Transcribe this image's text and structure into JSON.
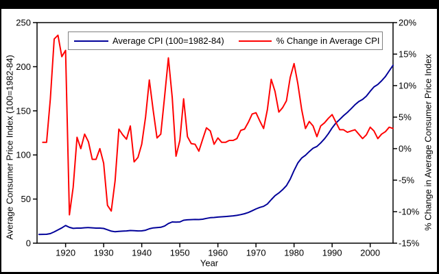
{
  "window": {
    "background": "#000000",
    "canvas_background": "#ffffff",
    "top_band_height": 13
  },
  "frame_color": "#000000",
  "legend_border_color": "#7f7f7f",
  "chart_data": {
    "type": "line",
    "title": "",
    "xlabel": "Year",
    "ylabel_left": "Average Consumer Price Index (100=1982-84)",
    "ylabel_right": "% Change in Average Consumer Price Index",
    "grid": false,
    "legend_position": "top-inside",
    "x_axis": {
      "min": 1912.5,
      "max": 2006,
      "ticks": [
        1920,
        1930,
        1940,
        1950,
        1960,
        1970,
        1980,
        1990,
        2000
      ],
      "tick_labels": [
        "1920",
        "1930",
        "1940",
        "1950",
        "1960",
        "1970",
        "1980",
        "1990",
        "2000"
      ]
    },
    "y_axis_left": {
      "min": 0,
      "max": 250,
      "ticks": [
        0,
        50,
        100,
        150,
        200,
        250
      ],
      "tick_labels": [
        "0",
        "50",
        "100",
        "150",
        "200",
        "250"
      ]
    },
    "y_axis_right": {
      "min": -15,
      "max": 20,
      "ticks": [
        20,
        15,
        10,
        5,
        0,
        -5,
        -10,
        -15
      ],
      "tick_labels": [
        "20%",
        "15%",
        "10%",
        "5%",
        "0%",
        "-5%",
        "-10%",
        "-15%"
      ]
    },
    "series": [
      {
        "name": "Average CPI (100=1982-84)",
        "axis": "left",
        "color": "#000099",
        "start_year": 1913,
        "values": [
          9.9,
          10.0,
          10.1,
          10.9,
          12.8,
          15.1,
          17.3,
          20.0,
          17.9,
          16.8,
          17.1,
          17.1,
          17.5,
          17.7,
          17.4,
          17.1,
          17.1,
          16.7,
          15.2,
          13.7,
          13.0,
          13.4,
          13.7,
          13.9,
          14.4,
          14.1,
          13.9,
          14.0,
          14.7,
          16.3,
          17.3,
          17.6,
          18.0,
          19.5,
          22.3,
          24.1,
          23.8,
          24.1,
          26.0,
          26.5,
          26.7,
          26.9,
          26.8,
          27.2,
          28.1,
          28.9,
          29.1,
          29.6,
          29.9,
          30.2,
          30.6,
          31.0,
          31.5,
          32.4,
          33.4,
          34.8,
          36.7,
          38.8,
          40.5,
          41.8,
          44.4,
          49.3,
          53.8,
          56.9,
          60.6,
          65.2,
          72.6,
          82.4,
          90.9,
          96.5,
          99.6,
          103.9,
          107.6,
          109.6,
          113.6,
          118.3,
          124.0,
          130.7,
          136.2,
          140.3,
          144.5,
          148.2,
          152.4,
          156.9,
          160.5,
          163.0,
          166.6,
          172.2,
          177.1,
          179.9,
          184.0,
          188.9,
          195.3,
          201.6
        ]
      },
      {
        "name": "% Change in Average CPI",
        "axis": "right",
        "color": "#ff0000",
        "start_year": 1914,
        "values": [
          1.0,
          1.0,
          7.9,
          17.4,
          18.0,
          14.6,
          15.6,
          -10.5,
          -6.1,
          1.8,
          0.0,
          2.3,
          1.1,
          -1.7,
          -1.7,
          0.0,
          -2.3,
          -9.0,
          -9.9,
          -5.1,
          3.1,
          2.2,
          1.5,
          3.6,
          -2.1,
          -1.4,
          0.7,
          5.0,
          10.9,
          6.1,
          1.7,
          2.3,
          8.3,
          14.4,
          8.1,
          -1.2,
          1.3,
          7.9,
          1.9,
          0.8,
          0.7,
          -0.4,
          1.5,
          3.3,
          2.8,
          0.7,
          1.7,
          1.0,
          1.0,
          1.3,
          1.3,
          1.6,
          2.9,
          3.1,
          4.2,
          5.5,
          5.7,
          4.4,
          3.2,
          6.2,
          11.0,
          9.1,
          5.8,
          6.5,
          7.6,
          11.3,
          13.5,
          10.3,
          6.2,
          3.2,
          4.3,
          3.6,
          1.9,
          3.6,
          4.1,
          4.8,
          5.4,
          4.2,
          3.0,
          3.0,
          2.6,
          2.8,
          3.0,
          2.3,
          1.6,
          2.2,
          3.4,
          2.8,
          1.6,
          2.3,
          2.7,
          3.4,
          3.2
        ]
      }
    ]
  }
}
